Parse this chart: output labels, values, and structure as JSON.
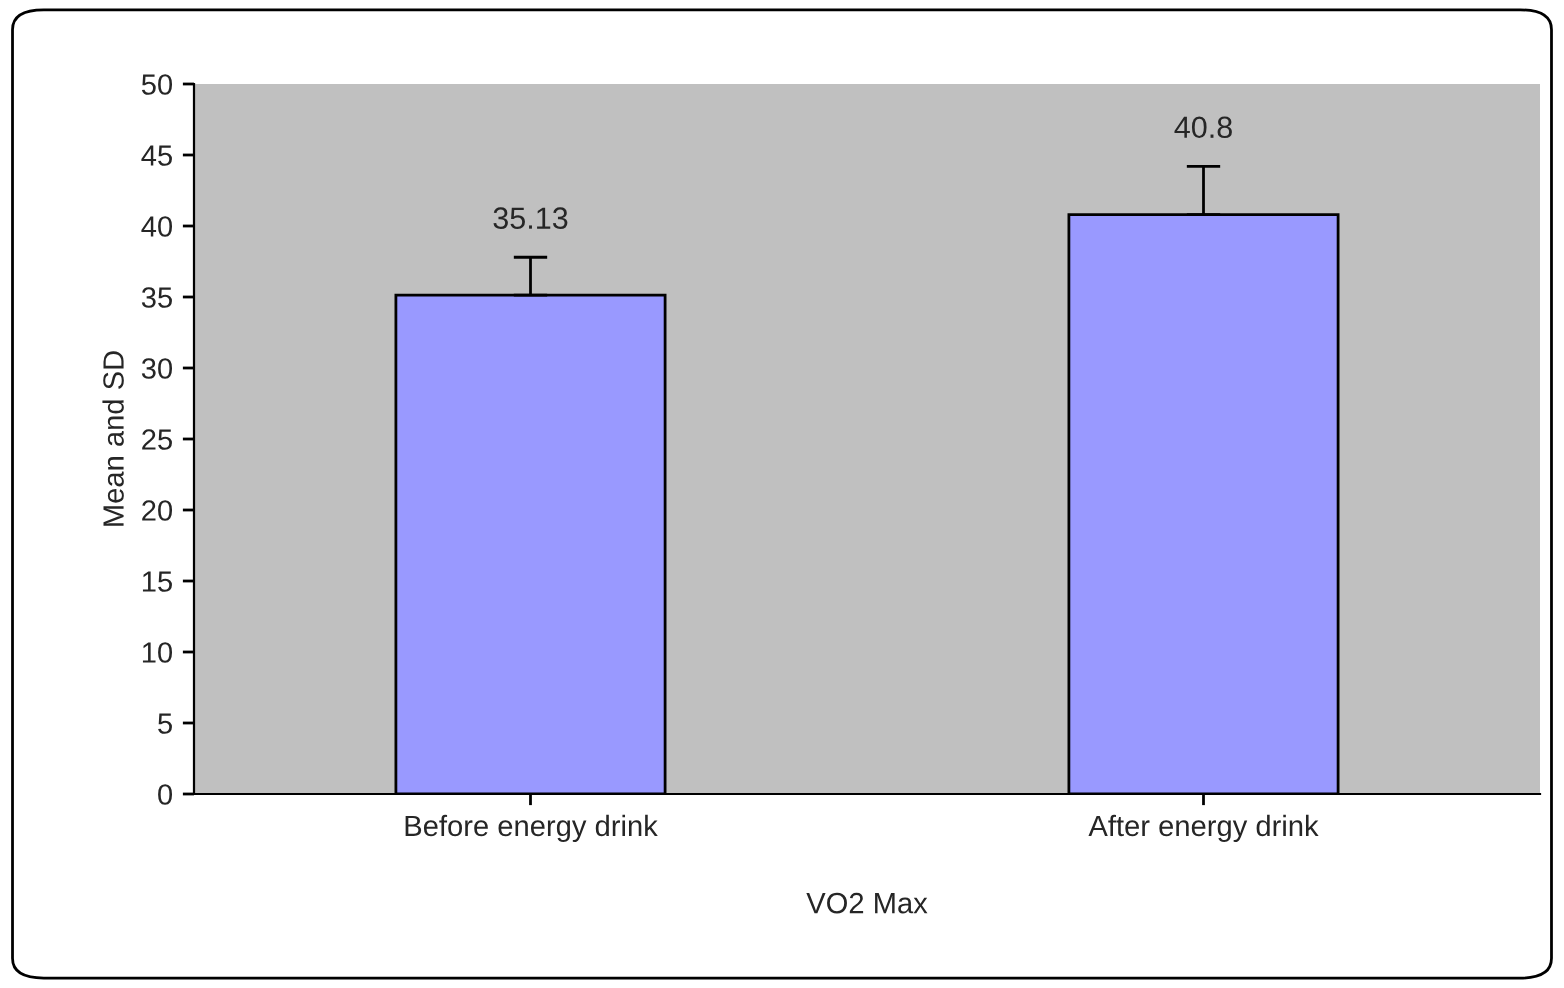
{
  "chart_data": {
    "type": "bar",
    "xlabel": "VO2 Max",
    "ylabel": "Mean and SD",
    "categories": [
      "Before energy drink",
      "After energy drink"
    ],
    "values": [
      35.13,
      40.8
    ],
    "color": "#9999ff",
    "errors": [
      [
        35.13,
        37.8
      ],
      [
        40.8,
        44.2
      ]
    ],
    "data_labels": true,
    "ylim": [
      0,
      50
    ],
    "yticks": [
      0,
      5,
      10,
      15,
      20,
      25,
      30,
      35,
      40,
      45,
      50
    ]
  }
}
